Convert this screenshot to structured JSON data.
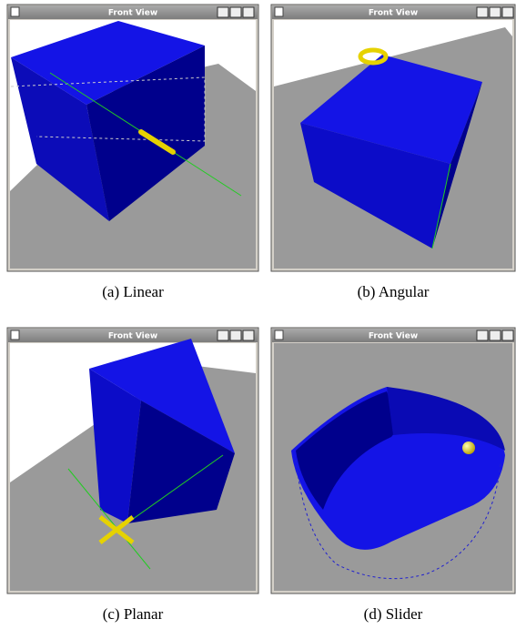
{
  "figure": {
    "panels": [
      {
        "window_title": "Front View",
        "caption": "(a) Linear"
      },
      {
        "window_title": "Front View",
        "caption": "(b) Angular"
      },
      {
        "window_title": "Front View",
        "caption": "(c) Planar"
      },
      {
        "window_title": "Front View",
        "caption": "(d) Slider"
      }
    ]
  }
}
